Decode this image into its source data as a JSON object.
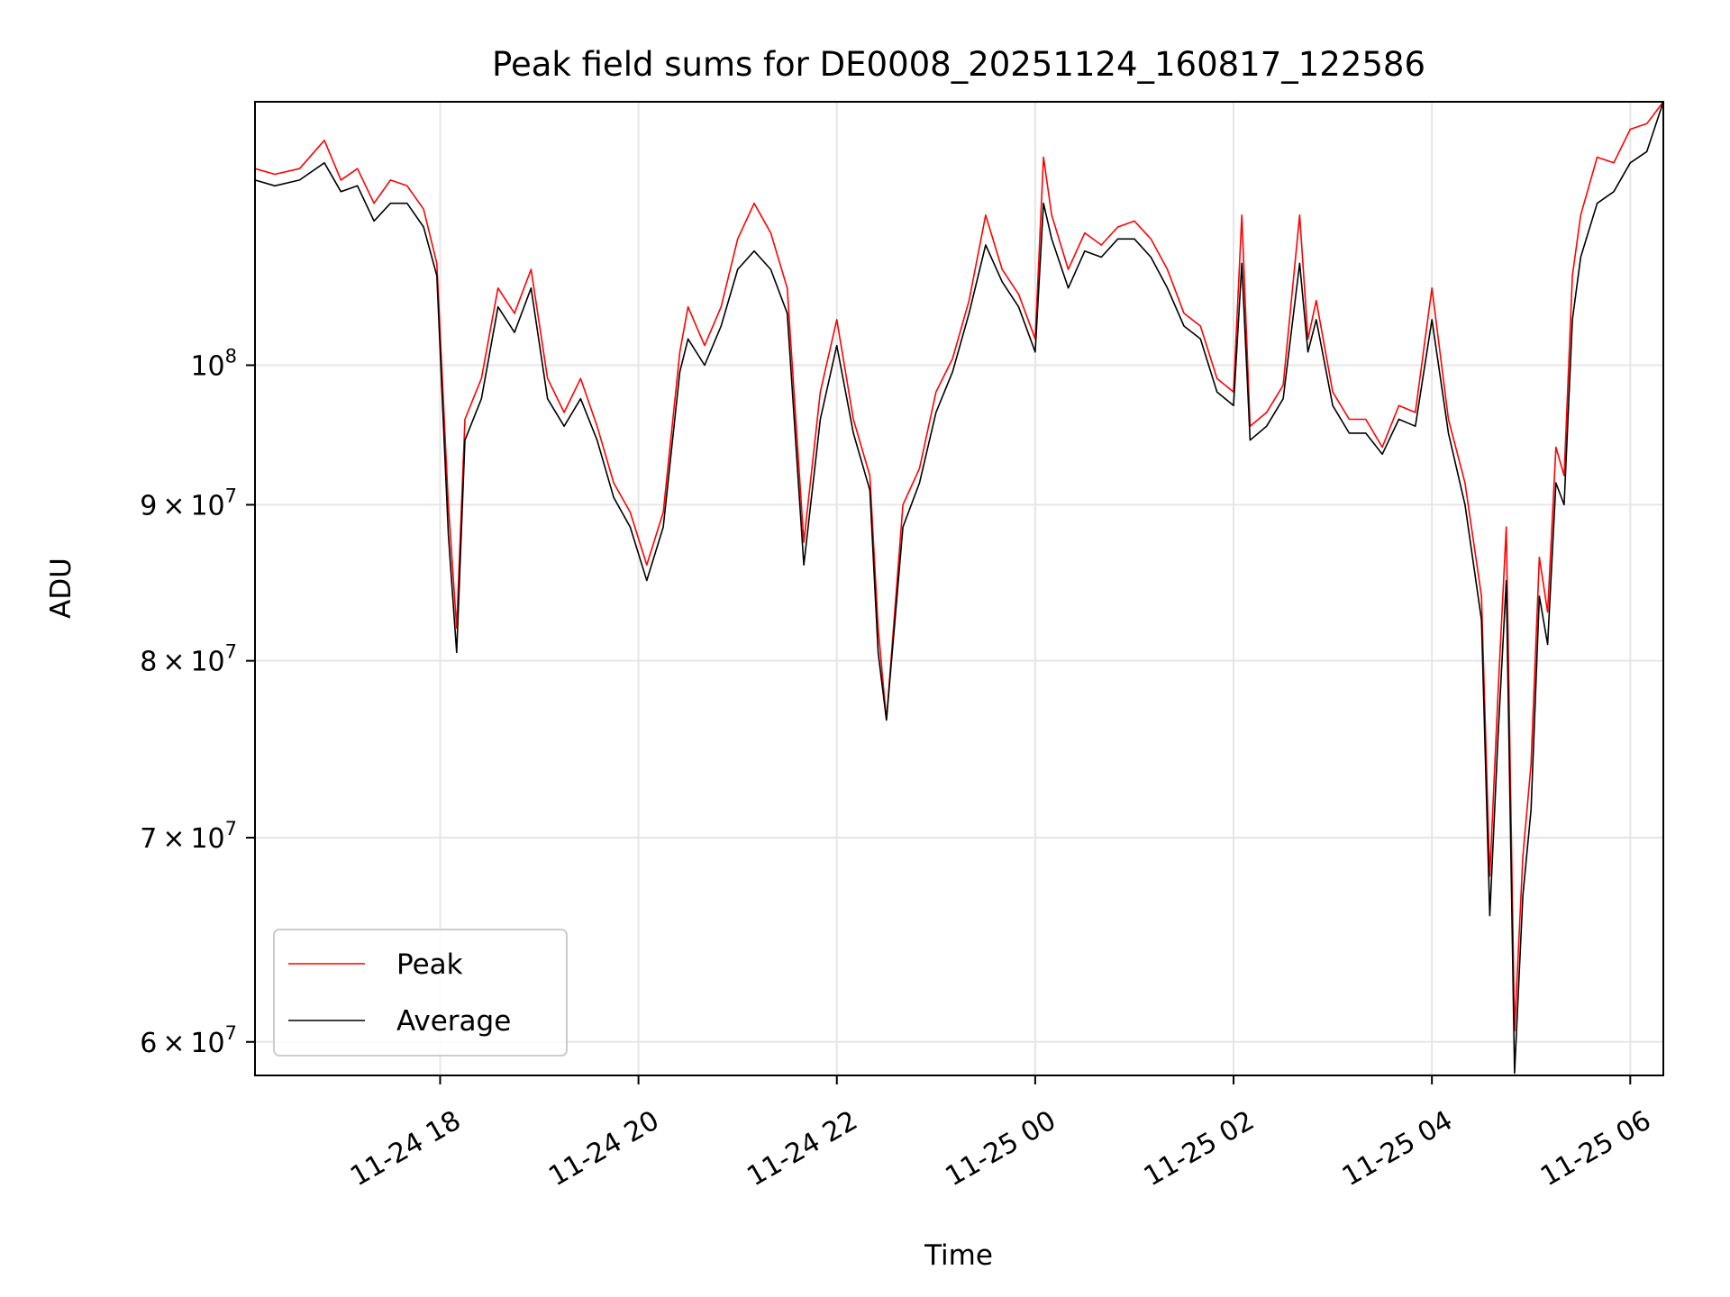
{
  "chart_data": {
    "type": "line",
    "title": "Peak field sums for DE0008_20251124_160817_122586",
    "xlabel": "Time",
    "ylabel": "ADU",
    "y_scale": "log",
    "x_range": [
      "2025-11-24 16:08",
      "2025-11-25 06:20"
    ],
    "ylim": [
      58500000,
      122000000
    ],
    "grid": true,
    "legend": "lower-left",
    "x_ticks": [
      {
        "t": "2025-11-24 18:00",
        "label": "11-24 18"
      },
      {
        "t": "2025-11-24 20:00",
        "label": "11-24 20"
      },
      {
        "t": "2025-11-24 22:00",
        "label": "11-24 22"
      },
      {
        "t": "2025-11-25 00:00",
        "label": "11-25 00"
      },
      {
        "t": "2025-11-25 02:00",
        "label": "11-25 02"
      },
      {
        "t": "2025-11-25 04:00",
        "label": "11-25 04"
      },
      {
        "t": "2025-11-25 06:00",
        "label": "11-25 06"
      }
    ],
    "y_ticks": [
      {
        "value": 60000000,
        "mantissa": "6",
        "exponent": "7"
      },
      {
        "value": 70000000,
        "mantissa": "7",
        "exponent": "7"
      },
      {
        "value": 80000000,
        "mantissa": "8",
        "exponent": "7"
      },
      {
        "value": 90000000,
        "mantissa": "9",
        "exponent": "7"
      },
      {
        "value": 100000000,
        "mantissa": "",
        "exponent": "8"
      }
    ],
    "series": [
      {
        "name": "Peak",
        "color": "#ff0000",
        "x": [
          "2025-11-24 16:08",
          "2025-11-24 16:20",
          "2025-11-24 16:35",
          "2025-11-24 16:50",
          "2025-11-24 17:00",
          "2025-11-24 17:10",
          "2025-11-24 17:20",
          "2025-11-24 17:30",
          "2025-11-24 17:40",
          "2025-11-24 17:50",
          "2025-11-24 17:58",
          "2025-11-24 18:05",
          "2025-11-24 18:10",
          "2025-11-24 18:15",
          "2025-11-24 18:25",
          "2025-11-24 18:35",
          "2025-11-24 18:45",
          "2025-11-24 18:55",
          "2025-11-24 19:05",
          "2025-11-24 19:15",
          "2025-11-24 19:25",
          "2025-11-24 19:35",
          "2025-11-24 19:45",
          "2025-11-24 19:55",
          "2025-11-24 20:05",
          "2025-11-24 20:15",
          "2025-11-24 20:25",
          "2025-11-24 20:30",
          "2025-11-24 20:40",
          "2025-11-24 20:50",
          "2025-11-24 21:00",
          "2025-11-24 21:10",
          "2025-11-24 21:20",
          "2025-11-24 21:30",
          "2025-11-24 21:40",
          "2025-11-24 21:50",
          "2025-11-24 22:00",
          "2025-11-24 22:10",
          "2025-11-24 22:20",
          "2025-11-24 22:25",
          "2025-11-24 22:30",
          "2025-11-24 22:40",
          "2025-11-24 22:50",
          "2025-11-24 23:00",
          "2025-11-24 23:10",
          "2025-11-24 23:20",
          "2025-11-24 23:30",
          "2025-11-24 23:40",
          "2025-11-24 23:50",
          "2025-11-25 00:00",
          "2025-11-25 00:05",
          "2025-11-25 00:10",
          "2025-11-25 00:20",
          "2025-11-25 00:30",
          "2025-11-25 00:40",
          "2025-11-25 00:50",
          "2025-11-25 01:00",
          "2025-11-25 01:10",
          "2025-11-25 01:20",
          "2025-11-25 01:30",
          "2025-11-25 01:40",
          "2025-11-25 01:50",
          "2025-11-25 02:00",
          "2025-11-25 02:05",
          "2025-11-25 02:10",
          "2025-11-25 02:20",
          "2025-11-25 02:30",
          "2025-11-25 02:40",
          "2025-11-25 02:45",
          "2025-11-25 02:50",
          "2025-11-25 03:00",
          "2025-11-25 03:10",
          "2025-11-25 03:20",
          "2025-11-25 03:30",
          "2025-11-25 03:40",
          "2025-11-25 03:50",
          "2025-11-25 04:00",
          "2025-11-25 04:10",
          "2025-11-25 04:20",
          "2025-11-25 04:30",
          "2025-11-25 04:35",
          "2025-11-25 04:40",
          "2025-11-25 04:45",
          "2025-11-25 04:50",
          "2025-11-25 04:55",
          "2025-11-25 05:00",
          "2025-11-25 05:05",
          "2025-11-25 05:10",
          "2025-11-25 05:15",
          "2025-11-25 05:20",
          "2025-11-25 05:25",
          "2025-11-25 05:30",
          "2025-11-25 05:40",
          "2025-11-25 05:50",
          "2025-11-25 06:00",
          "2025-11-25 06:10",
          "2025-11-25 06:20"
        ],
        "values": [
          116000000,
          115500000,
          116000000,
          118500000,
          115000000,
          116000000,
          113000000,
          115000000,
          114500000,
          112500000,
          108000000,
          90000000,
          82000000,
          96000000,
          99000000,
          106000000,
          104000000,
          107500000,
          99000000,
          96500000,
          99000000,
          95500000,
          91500000,
          89500000,
          86000000,
          89500000,
          101000000,
          104500000,
          101500000,
          104500000,
          110000000,
          113000000,
          110500000,
          106000000,
          87500000,
          98000000,
          103500000,
          96000000,
          92000000,
          82000000,
          76500000,
          90000000,
          92500000,
          98000000,
          100500000,
          105000000,
          112000000,
          107500000,
          105500000,
          102000000,
          117000000,
          112000000,
          107500000,
          110500000,
          109500000,
          111000000,
          111500000,
          110000000,
          107500000,
          104000000,
          103000000,
          99000000,
          98000000,
          112000000,
          95500000,
          96500000,
          98500000,
          112000000,
          102000000,
          105000000,
          98000000,
          96000000,
          96000000,
          94000000,
          97000000,
          96500000,
          106000000,
          96000000,
          91500000,
          84000000,
          68000000,
          78000000,
          88500000,
          60500000,
          69000000,
          74000000,
          86500000,
          83000000,
          94000000,
          92000000,
          107000000,
          112000000,
          117000000,
          116500000,
          119500000,
          120000000,
          122000000
        ]
      },
      {
        "name": "Average",
        "color": "#000000",
        "x": [
          "2025-11-24 16:08",
          "2025-11-24 16:20",
          "2025-11-24 16:35",
          "2025-11-24 16:50",
          "2025-11-24 17:00",
          "2025-11-24 17:10",
          "2025-11-24 17:20",
          "2025-11-24 17:30",
          "2025-11-24 17:40",
          "2025-11-24 17:50",
          "2025-11-24 17:58",
          "2025-11-24 18:05",
          "2025-11-24 18:10",
          "2025-11-24 18:15",
          "2025-11-24 18:25",
          "2025-11-24 18:35",
          "2025-11-24 18:45",
          "2025-11-24 18:55",
          "2025-11-24 19:05",
          "2025-11-24 19:15",
          "2025-11-24 19:25",
          "2025-11-24 19:35",
          "2025-11-24 19:45",
          "2025-11-24 19:55",
          "2025-11-24 20:05",
          "2025-11-24 20:15",
          "2025-11-24 20:25",
          "2025-11-24 20:30",
          "2025-11-24 20:40",
          "2025-11-24 20:50",
          "2025-11-24 21:00",
          "2025-11-24 21:10",
          "2025-11-24 21:20",
          "2025-11-24 21:30",
          "2025-11-24 21:40",
          "2025-11-24 21:50",
          "2025-11-24 22:00",
          "2025-11-24 22:10",
          "2025-11-24 22:20",
          "2025-11-24 22:25",
          "2025-11-24 22:30",
          "2025-11-24 22:40",
          "2025-11-24 22:50",
          "2025-11-24 23:00",
          "2025-11-24 23:10",
          "2025-11-24 23:20",
          "2025-11-24 23:30",
          "2025-11-24 23:40",
          "2025-11-24 23:50",
          "2025-11-25 00:00",
          "2025-11-25 00:05",
          "2025-11-25 00:10",
          "2025-11-25 00:20",
          "2025-11-25 00:30",
          "2025-11-25 00:40",
          "2025-11-25 00:50",
          "2025-11-25 01:00",
          "2025-11-25 01:10",
          "2025-11-25 01:20",
          "2025-11-25 01:30",
          "2025-11-25 01:40",
          "2025-11-25 01:50",
          "2025-11-25 02:00",
          "2025-11-25 02:05",
          "2025-11-25 02:10",
          "2025-11-25 02:20",
          "2025-11-25 02:30",
          "2025-11-25 02:40",
          "2025-11-25 02:45",
          "2025-11-25 02:50",
          "2025-11-25 03:00",
          "2025-11-25 03:10",
          "2025-11-25 03:20",
          "2025-11-25 03:30",
          "2025-11-25 03:40",
          "2025-11-25 03:50",
          "2025-11-25 04:00",
          "2025-11-25 04:10",
          "2025-11-25 04:20",
          "2025-11-25 04:30",
          "2025-11-25 04:35",
          "2025-11-25 04:40",
          "2025-11-25 04:45",
          "2025-11-25 04:50",
          "2025-11-25 04:55",
          "2025-11-25 05:00",
          "2025-11-25 05:05",
          "2025-11-25 05:10",
          "2025-11-25 05:15",
          "2025-11-25 05:20",
          "2025-11-25 05:25",
          "2025-11-25 05:30",
          "2025-11-25 05:40",
          "2025-11-25 05:50",
          "2025-11-25 06:00",
          "2025-11-25 06:10",
          "2025-11-25 06:20"
        ],
        "values": [
          115000000,
          114500000,
          115000000,
          116500000,
          114000000,
          114500000,
          111500000,
          113000000,
          113000000,
          111000000,
          107000000,
          88000000,
          80500000,
          94500000,
          97500000,
          104500000,
          102500000,
          106000000,
          97500000,
          95500000,
          97500000,
          94500000,
          90500000,
          88500000,
          85000000,
          88500000,
          99500000,
          102000000,
          100000000,
          103000000,
          107500000,
          109000000,
          107500000,
          104000000,
          86000000,
          96000000,
          101500000,
          95000000,
          91000000,
          80500000,
          76500000,
          88500000,
          91500000,
          96500000,
          99500000,
          104000000,
          109500000,
          106500000,
          104500000,
          101000000,
          113000000,
          110000000,
          106000000,
          109000000,
          108500000,
          110000000,
          110000000,
          108500000,
          106000000,
          103000000,
          102000000,
          98000000,
          97000000,
          108000000,
          94500000,
          95500000,
          97500000,
          108000000,
          101000000,
          103500000,
          97000000,
          95000000,
          95000000,
          93500000,
          96000000,
          95500000,
          103500000,
          95000000,
          90000000,
          82500000,
          66000000,
          75500000,
          85000000,
          58600000,
          67000000,
          71500000,
          84000000,
          81000000,
          91500000,
          90000000,
          103500000,
          108500000,
          113000000,
          114000000,
          116500000,
          117500000,
          122000000
        ]
      }
    ]
  }
}
